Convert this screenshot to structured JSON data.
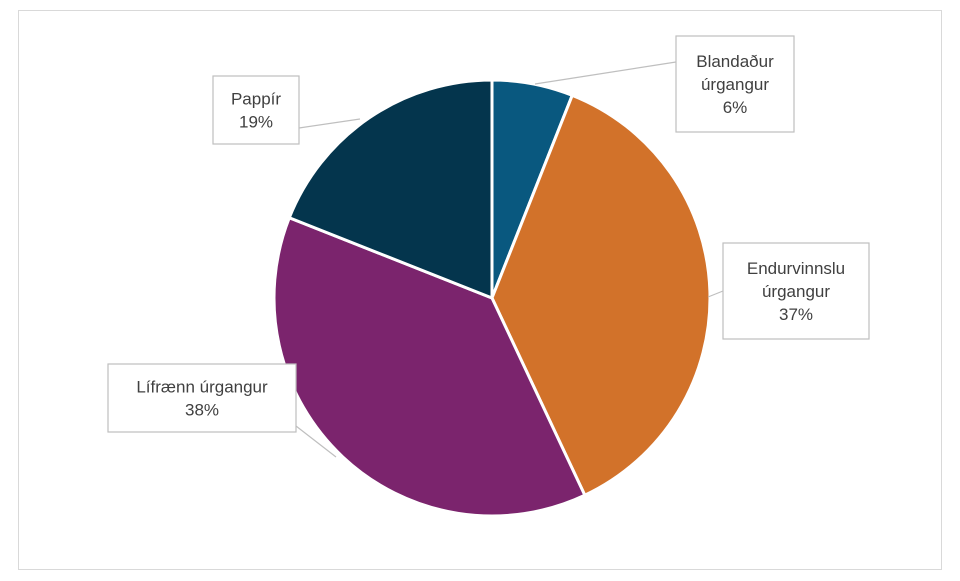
{
  "chart_data": {
    "type": "pie",
    "title": "",
    "legend": "none",
    "slices": [
      {
        "label_lines": [
          "Blandaður",
          "úrgangur"
        ],
        "label": "Blandaður úrgangur",
        "value": 6,
        "value_label": "6%",
        "color": "#09587f"
      },
      {
        "label_lines": [
          "Endurvinnslu",
          "úrgangur"
        ],
        "label": "Endurvinnslu úrgangur",
        "value": 37,
        "value_label": "37%",
        "color": "#d2722a"
      },
      {
        "label_lines": [
          "Lífrænn úrgangur"
        ],
        "label": "Lífrænn úrgangur",
        "value": 38,
        "value_label": "38%",
        "color": "#7b246d"
      },
      {
        "label_lines": [
          "Pappír"
        ],
        "label": "Pappír",
        "value": 19,
        "value_label": "19%",
        "color": "#04354d"
      }
    ]
  }
}
